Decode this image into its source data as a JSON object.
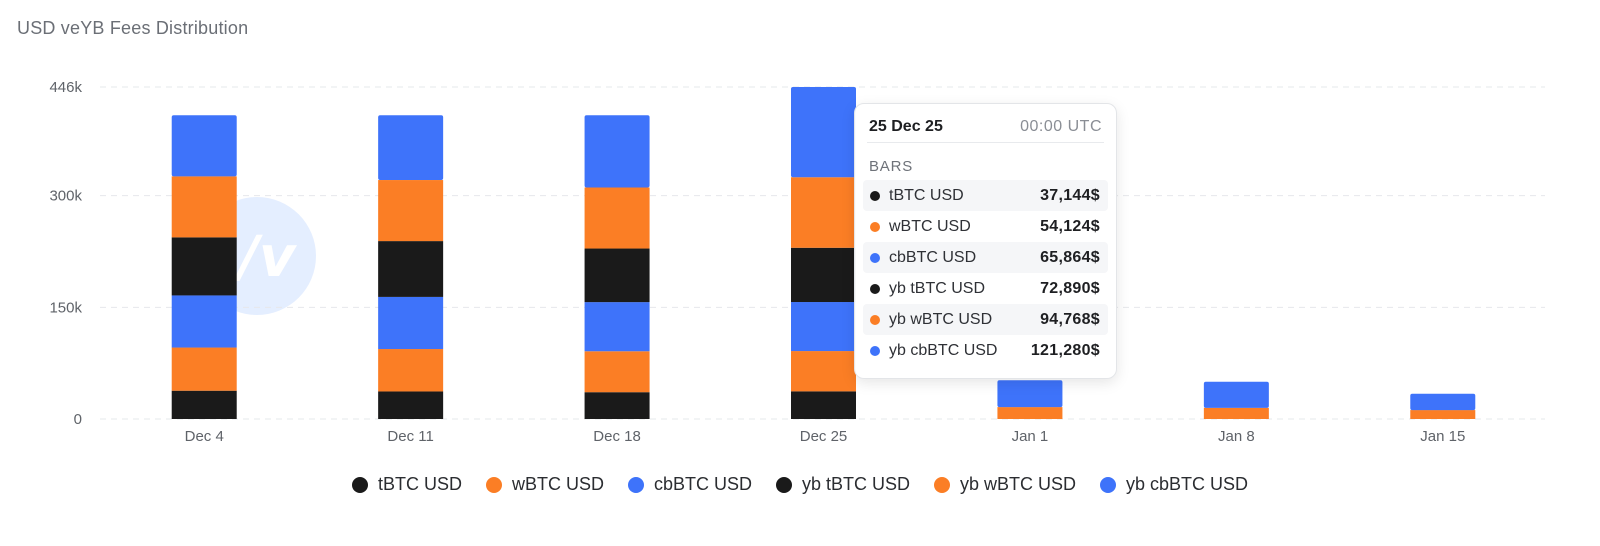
{
  "title": "USD veYB Fees Distribution",
  "colors": {
    "tBTC": "#1a1a1a",
    "wBTC": "#fb7e25",
    "cbBTC": "#3e73fa",
    "grid": "#e6e8eb",
    "watermark": "#dbe8ff"
  },
  "watermark_icon": "veyb-logo-watermark",
  "chart_data": {
    "type": "bar",
    "stacked": true,
    "title": "USD veYB Fees Distribution",
    "categories": [
      "Dec 4",
      "Dec 11",
      "Dec 18",
      "Dec 25",
      "Jan 1",
      "Jan 8",
      "Jan 15"
    ],
    "yticks": [
      "0",
      "150k",
      "300k",
      "446k"
    ],
    "ytick_values": [
      0,
      150000,
      300000,
      446000
    ],
    "ylim": [
      0,
      446000
    ],
    "grid": true,
    "legend_position": "bottom-center",
    "series": [
      {
        "name": "tBTC USD",
        "color": "#1a1a1a",
        "values": [
          38000,
          37000,
          36000,
          37144,
          0,
          0,
          0
        ]
      },
      {
        "name": "wBTC USD",
        "color": "#fb7e25",
        "values": [
          58000,
          57000,
          55000,
          54124,
          16000,
          15000,
          12000
        ]
      },
      {
        "name": "cbBTC USD",
        "color": "#3e73fa",
        "values": [
          70000,
          70000,
          66000,
          65864,
          36000,
          35000,
          22000
        ]
      },
      {
        "name": "yb tBTC USD",
        "color": "#1a1a1a",
        "values": [
          78000,
          75000,
          72000,
          72890,
          0,
          0,
          0
        ]
      },
      {
        "name": "yb wBTC USD",
        "color": "#fb7e25",
        "values": [
          82000,
          82000,
          82000,
          94768,
          0,
          0,
          0
        ]
      },
      {
        "name": "yb cbBTC USD",
        "color": "#3e73fa",
        "values": [
          82000,
          87000,
          97000,
          121280,
          0,
          0,
          0
        ]
      }
    ]
  },
  "legend": [
    {
      "label": "tBTC USD",
      "color": "#1a1a1a"
    },
    {
      "label": "wBTC USD",
      "color": "#fb7e25"
    },
    {
      "label": "cbBTC USD",
      "color": "#3e73fa"
    },
    {
      "label": "yb tBTC USD",
      "color": "#1a1a1a"
    },
    {
      "label": "yb wBTC USD",
      "color": "#fb7e25"
    },
    {
      "label": "yb cbBTC USD",
      "color": "#3e73fa"
    }
  ],
  "tooltip": {
    "date": "25 Dec 25",
    "time": "00:00  UTC",
    "section": "BARS",
    "rows": [
      {
        "label": "tBTC USD",
        "value": "37,144$",
        "color": "#1a1a1a"
      },
      {
        "label": "wBTC USD",
        "value": "54,124$",
        "color": "#fb7e25"
      },
      {
        "label": "cbBTC USD",
        "value": "65,864$",
        "color": "#3e73fa"
      },
      {
        "label": "yb tBTC USD",
        "value": "72,890$",
        "color": "#1a1a1a"
      },
      {
        "label": "yb wBTC USD",
        "value": "94,768$",
        "color": "#fb7e25"
      },
      {
        "label": "yb cbBTC USD",
        "value": "121,280$",
        "color": "#3e73fa"
      }
    ]
  }
}
